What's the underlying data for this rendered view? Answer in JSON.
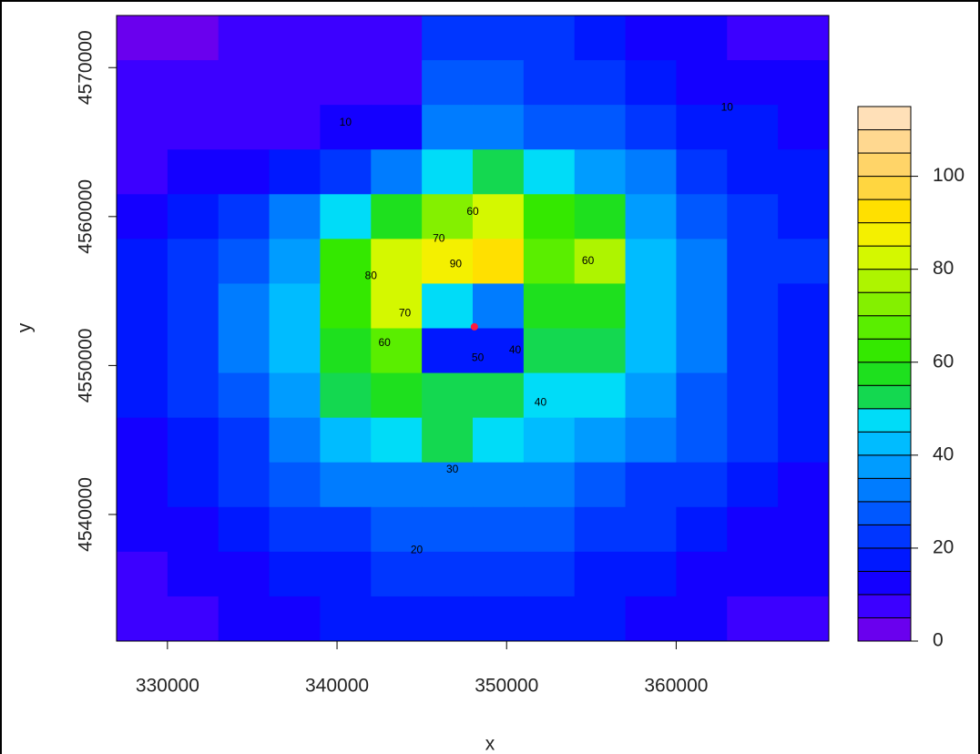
{
  "chart_data": {
    "type": "filled-contour",
    "x_label": "x",
    "y_label": "y",
    "x": [
      328500,
      331500,
      334500,
      337500,
      340500,
      343500,
      346500,
      349500,
      352500,
      355500,
      358500,
      361500,
      364500,
      367500
    ],
    "y": [
      4572000,
      4569000,
      4566000,
      4563000,
      4560000,
      4557000,
      4554000,
      4551000,
      4548000,
      4545000,
      4542000,
      4539000,
      4536000,
      4533000
    ],
    "z": [
      [
        4,
        4,
        5,
        5,
        5,
        6,
        20,
        22,
        20,
        18,
        14,
        12,
        8,
        6
      ],
      [
        5,
        5,
        5,
        5,
        6,
        8,
        28,
        28,
        22,
        20,
        16,
        14,
        12,
        10
      ],
      [
        6,
        6,
        7,
        8,
        10,
        14,
        34,
        34,
        28,
        26,
        20,
        18,
        16,
        14
      ],
      [
        8,
        10,
        12,
        16,
        22,
        30,
        48,
        50,
        45,
        38,
        30,
        22,
        18,
        15
      ],
      [
        14,
        18,
        24,
        32,
        45,
        58,
        70,
        80,
        60,
        55,
        38,
        28,
        22,
        18
      ],
      [
        16,
        20,
        28,
        38,
        60,
        82,
        88,
        90,
        65,
        75,
        40,
        30,
        22,
        20
      ],
      [
        18,
        22,
        30,
        42,
        62,
        80,
        45,
        30,
        55,
        55,
        40,
        30,
        22,
        18
      ],
      [
        18,
        22,
        30,
        42,
        58,
        65,
        18,
        18,
        50,
        52,
        40,
        30,
        22,
        18
      ],
      [
        16,
        20,
        28,
        38,
        52,
        55,
        50,
        50,
        48,
        45,
        36,
        28,
        20,
        16
      ],
      [
        14,
        18,
        24,
        32,
        40,
        48,
        50,
        48,
        44,
        38,
        32,
        26,
        20,
        16
      ],
      [
        12,
        16,
        20,
        26,
        30,
        32,
        32,
        32,
        30,
        28,
        24,
        20,
        16,
        13
      ],
      [
        11,
        14,
        17,
        20,
        23,
        25,
        26,
        26,
        25,
        23,
        20,
        17,
        14,
        12
      ],
      [
        9,
        11,
        14,
        17,
        19,
        20,
        21,
        21,
        20,
        19,
        17,
        14,
        12,
        10
      ],
      [
        7,
        9,
        11,
        13,
        15,
        16,
        17,
        17,
        16,
        15,
        13,
        11,
        9,
        8
      ]
    ],
    "xlim": [
      327000,
      369000
    ],
    "ylim": [
      4531500,
      4573500
    ],
    "xticks": [
      330000,
      340000,
      350000,
      360000
    ],
    "yticks": [
      4540000,
      4550000,
      4560000,
      4570000
    ],
    "levels": [
      0,
      5,
      10,
      15,
      20,
      25,
      30,
      35,
      40,
      45,
      50,
      55,
      60,
      65,
      70,
      75,
      80,
      85,
      90,
      95,
      100,
      105,
      110,
      115
    ],
    "level_colors": [
      "#6a00ee",
      "#3c00ff",
      "#1400ff",
      "#0018ff",
      "#0036ff",
      "#0058ff",
      "#007cff",
      "#009cff",
      "#00bcff",
      "#00dcf8",
      "#14d850",
      "#1ee01e",
      "#34e800",
      "#5aee00",
      "#84f000",
      "#aef400",
      "#d4f800",
      "#f4f000",
      "#ffe000",
      "#ffd640",
      "#ffd468",
      "#ffd890",
      "#ffe0b8"
    ],
    "zlim": [
      0,
      115
    ],
    "zticks": [
      0,
      20,
      40,
      60,
      80,
      100
    ],
    "contour_labels": [
      {
        "value": 10,
        "x": 363000,
        "y": 4567300
      },
      {
        "value": 10,
        "x": 340500,
        "y": 4566300
      },
      {
        "value": 20,
        "x": 344700,
        "y": 4537600
      },
      {
        "value": 30,
        "x": 346800,
        "y": 4543000
      },
      {
        "value": 40,
        "x": 352000,
        "y": 4547500
      },
      {
        "value": 60,
        "x": 342800,
        "y": 4551500
      },
      {
        "value": 70,
        "x": 344000,
        "y": 4553500
      },
      {
        "value": 60,
        "x": 348000,
        "y": 4560300
      },
      {
        "value": 70,
        "x": 346000,
        "y": 4558500
      },
      {
        "value": 90,
        "x": 347000,
        "y": 4556800
      },
      {
        "value": 80,
        "x": 342000,
        "y": 4556000
      },
      {
        "value": 60,
        "x": 354800,
        "y": 4557000
      },
      {
        "value": 50,
        "x": 348300,
        "y": 4550500
      },
      {
        "value": 40,
        "x": 350500,
        "y": 4551000
      }
    ],
    "source_point": {
      "x": 348100,
      "y": 4552600,
      "color": "#ff1a3c"
    }
  }
}
